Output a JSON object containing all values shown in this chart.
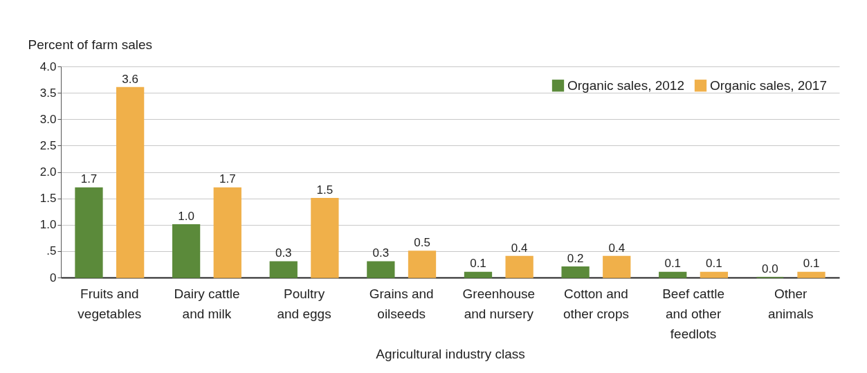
{
  "chart_data": {
    "type": "bar",
    "ylabel": "Percent of farm sales",
    "xlabel": "Agricultural industry class",
    "categories": [
      "Fruits and\nvegetables",
      "Dairy cattle\nand milk",
      "Poultry\nand eggs",
      "Grains and\noilseeds",
      "Greenhouse\nand nursery",
      "Cotton and\nother crops",
      "Beef cattle\nand other\nfeedlots",
      "Other\nanimals"
    ],
    "series": [
      {
        "name": "Organic sales, 2012",
        "color": "#5b8a3a",
        "values": [
          1.7,
          1.0,
          0.3,
          0.3,
          0.1,
          0.2,
          0.1,
          0.0
        ],
        "value_labels": [
          "1.7",
          "1.0",
          "0.3",
          "0.3",
          "0.1",
          "0.2",
          "0.1",
          "0.0"
        ]
      },
      {
        "name": "Organic sales, 2017",
        "color": "#f0b04a",
        "values": [
          3.6,
          1.7,
          1.5,
          0.5,
          0.4,
          0.4,
          0.1,
          0.1
        ],
        "value_labels": [
          "3.6",
          "1.7",
          "1.5",
          "0.5",
          "0.4",
          "0.4",
          "0.1",
          "0.1"
        ]
      }
    ],
    "ylim": [
      0,
      4
    ],
    "yticks": [
      0,
      {
        "value": 0.5,
        "label": ".5"
      },
      {
        "value": 1,
        "label": "1.0"
      },
      {
        "value": 1.5,
        "label": "1.5"
      },
      {
        "value": 2,
        "label": "2.0"
      },
      {
        "value": 2.5,
        "label": "2.5"
      },
      {
        "value": 3,
        "label": "3.0"
      },
      {
        "value": 3.5,
        "label": "3.5"
      },
      {
        "value": 4,
        "label": "4.0"
      }
    ],
    "grid": "y",
    "legend": "top right"
  }
}
